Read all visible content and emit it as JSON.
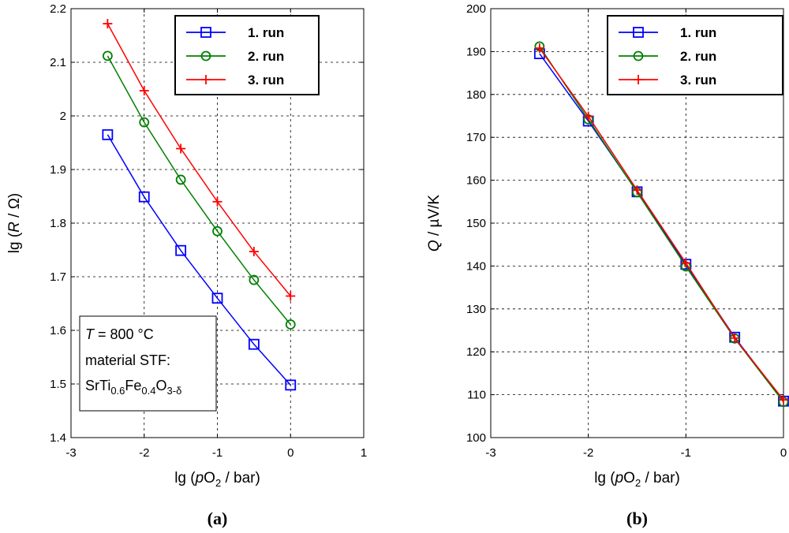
{
  "chart_data": [
    {
      "type": "line",
      "panel_label": "(a)",
      "xlabel": {
        "pre": "lg (",
        "italic": "p",
        "main": "O",
        "sub": "2",
        "post": " / bar)"
      },
      "ylabel": {
        "pre": "lg (",
        "italic": "R",
        "post": " / Ω)"
      },
      "xlim": [
        -3,
        1
      ],
      "ylim": [
        1.4,
        2.2
      ],
      "xticks": [
        "-3",
        "-2",
        "-1",
        "0",
        "1"
      ],
      "yticks": [
        "1.4",
        "1.5",
        "1.6",
        "1.7",
        "1.8",
        "1.9",
        "2",
        "2.1",
        "2.2"
      ],
      "grid": true,
      "legend_position": "top-right",
      "x": [
        -2.5,
        -2.0,
        -1.5,
        -1.0,
        -0.5,
        0.0
      ],
      "series": [
        {
          "name": "1. run",
          "color": "#0000ff",
          "marker": "square",
          "values": [
            1.965,
            1.849,
            1.749,
            1.66,
            1.574,
            1.498
          ]
        },
        {
          "name": "2. run",
          "color": "#008000",
          "marker": "circle",
          "values": [
            2.112,
            1.988,
            1.881,
            1.785,
            1.694,
            1.611
          ]
        },
        {
          "name": "3. run",
          "color": "#ff0000",
          "marker": "plus",
          "values": [
            2.172,
            2.047,
            1.939,
            1.84,
            1.747,
            1.664
          ]
        }
      ],
      "annotation": {
        "line1_italic": "T",
        "line1_rest": " = 800 °C",
        "line2": "material STF:",
        "formula": [
          {
            "t": "SrTi",
            "s": "base"
          },
          {
            "t": "0.6",
            "s": "sub"
          },
          {
            "t": "Fe",
            "s": "base"
          },
          {
            "t": "0.4",
            "s": "sub"
          },
          {
            "t": "O",
            "s": "base"
          },
          {
            "t": "3-δ",
            "s": "sub"
          }
        ]
      }
    },
    {
      "type": "line",
      "panel_label": "(b)",
      "xlabel": {
        "pre": "lg (",
        "italic": "p",
        "main": "O",
        "sub": "2",
        "post": " / bar)"
      },
      "ylabel": {
        "pre": "",
        "italic": "Q",
        "post": " / µV/K"
      },
      "xlim": [
        -3,
        0
      ],
      "ylim": [
        100,
        200
      ],
      "xticks": [
        "-3",
        "-2",
        "-1",
        "0"
      ],
      "yticks": [
        "100",
        "110",
        "120",
        "130",
        "140",
        "150",
        "160",
        "170",
        "180",
        "190",
        "200"
      ],
      "grid": true,
      "legend_position": "top-right",
      "x": [
        -2.5,
        -2.0,
        -1.5,
        -1.0,
        -0.5,
        0.0
      ],
      "series": [
        {
          "name": "1. run",
          "color": "#0000ff",
          "marker": "square",
          "values": [
            189.5,
            173.8,
            157.3,
            140.4,
            123.4,
            108.5
          ]
        },
        {
          "name": "2. run",
          "color": "#008000",
          "marker": "circle",
          "values": [
            191.2,
            174.2,
            157.2,
            139.9,
            123.1,
            108.3
          ]
        },
        {
          "name": "3. run",
          "color": "#ff0000",
          "marker": "plus",
          "values": [
            190.8,
            174.9,
            157.7,
            140.7,
            123.2,
            108.8
          ]
        }
      ]
    }
  ]
}
